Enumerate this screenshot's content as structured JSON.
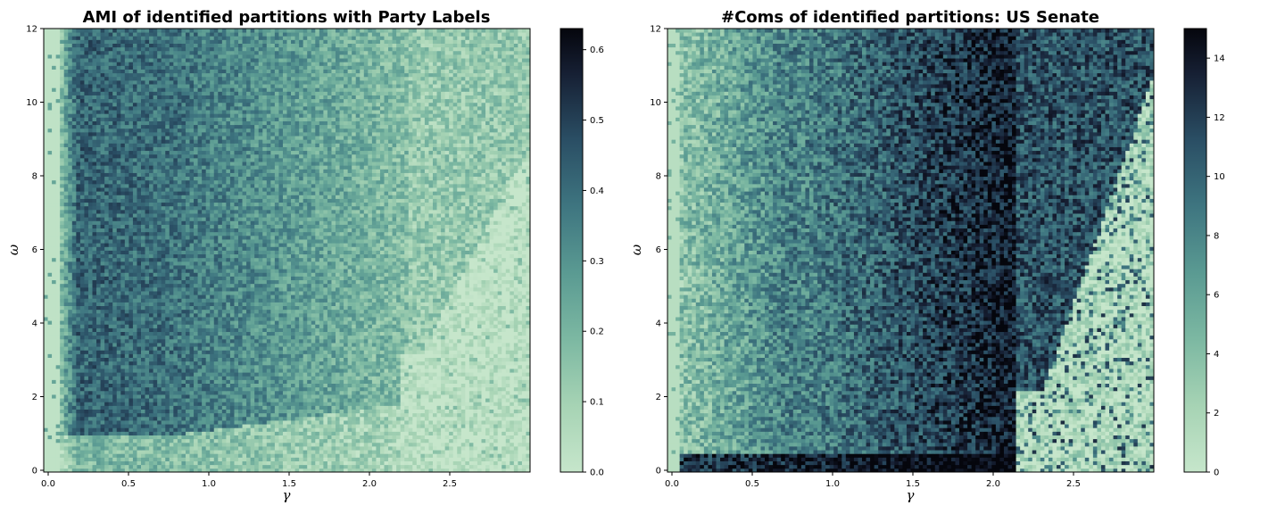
{
  "chart_data": [
    {
      "type": "heatmap",
      "title": "AMI of identified partitions with Party Labels",
      "xlabel": "γ",
      "ylabel": "ω",
      "xlim": [
        0,
        3.0
      ],
      "ylim": [
        0,
        12
      ],
      "x_ticks": [
        "0.0",
        "0.5",
        "1.0",
        "1.5",
        "2.0",
        "2.5"
      ],
      "y_ticks": [
        "0",
        "2",
        "4",
        "6",
        "8",
        "10",
        "12"
      ],
      "colorbar": {
        "range": [
          0,
          0.63
        ],
        "ticks": [
          "0.0",
          "0.1",
          "0.2",
          "0.3",
          "0.4",
          "0.5",
          "0.6"
        ]
      },
      "colormap": "cubehelix_r (pale green to black)",
      "grid": false,
      "description_of_values": "AMI near 0 for gamma < 0.1; peaks ~0.4-0.5 for gamma 0.2-0.8; decreases to ~0.15 by gamma 2.2; near 0 for gamma > 2.3 at low omega"
    },
    {
      "type": "heatmap",
      "title": "#Coms of identified partitions: US Senate",
      "xlabel": "γ",
      "ylabel": "ω",
      "xlim": [
        0,
        3.0
      ],
      "ylim": [
        0,
        12
      ],
      "x_ticks": [
        "0.0",
        "0.5",
        "1.0",
        "1.5",
        "2.0",
        "2.5"
      ],
      "y_ticks": [
        "0",
        "2",
        "4",
        "6",
        "8",
        "10",
        "12"
      ],
      "colorbar": {
        "range": [
          0,
          15
        ],
        "ticks": [
          "0",
          "2",
          "4",
          "6",
          "8",
          "10",
          "12",
          "14"
        ]
      },
      "colormap": "cubehelix_r (pale green to black)",
      "grid": false,
      "description_of_values": "~1 community for gamma < 0.1; increases with gamma to ~14-15 near gamma 1.5-2.1; drops to ~1-2 beyond gamma 2.3 except sparse high values"
    }
  ]
}
